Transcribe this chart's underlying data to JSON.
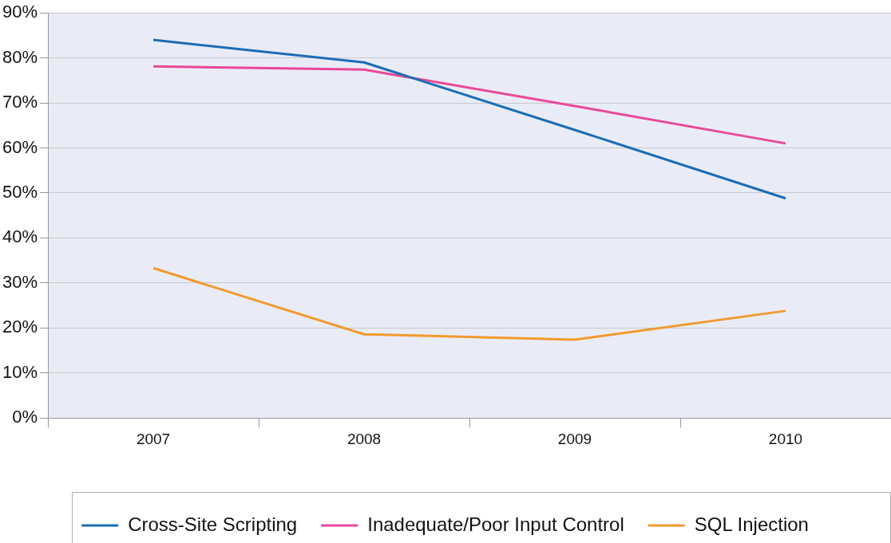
{
  "chart_data": {
    "type": "line",
    "categories": [
      "2007",
      "2008",
      "2009",
      "2010"
    ],
    "series": [
      {
        "name": "Cross-Site Scripting",
        "color": "#1b6db5",
        "values": [
          84,
          79,
          64,
          48.8
        ]
      },
      {
        "name": "Inadequate/Poor Input Control",
        "color": "#e9489a",
        "values": [
          78.1,
          77.4,
          69.3,
          61
        ]
      },
      {
        "name": "SQL Injection",
        "color": "#f19a2e",
        "values": [
          33.3,
          18.6,
          17.4,
          23.8
        ]
      }
    ],
    "ylim": [
      0,
      90
    ],
    "yticks": [
      {
        "value": 0,
        "label": "0%"
      },
      {
        "value": 10,
        "label": "10%"
      },
      {
        "value": 20,
        "label": "20%"
      },
      {
        "value": 30,
        "label": "30%"
      },
      {
        "value": 40,
        "label": "40%"
      },
      {
        "value": 50,
        "label": "50%"
      },
      {
        "value": 60,
        "label": "60%"
      },
      {
        "value": 70,
        "label": "70%"
      },
      {
        "value": 80,
        "label": "80%"
      },
      {
        "value": 90,
        "label": "90%"
      }
    ],
    "grid": "y",
    "legend": "bottom",
    "marker": "none",
    "line_style": "solid"
  }
}
